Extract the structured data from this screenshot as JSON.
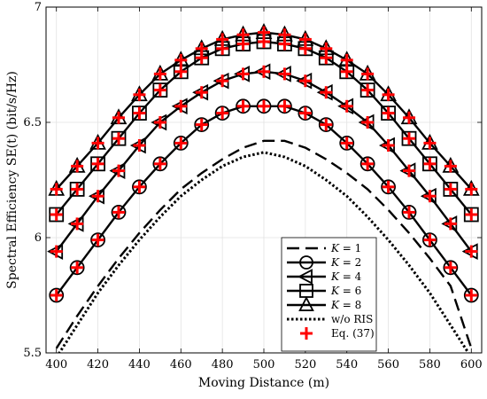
{
  "chart_data": {
    "type": "line",
    "title": "",
    "xlabel": "Moving Distance (m)",
    "ylabel": "Spectral Efficiency SE(t) (bit/s/Hz)",
    "xlim": [
      395,
      605
    ],
    "ylim": [
      5.5,
      7.0
    ],
    "x_ticks": [
      400,
      420,
      440,
      460,
      480,
      500,
      520,
      540,
      560,
      580,
      600
    ],
    "y_ticks": [
      5.5,
      6,
      6.5,
      7
    ],
    "x_tick_labels": [
      "400",
      "420",
      "440",
      "460",
      "480",
      "500",
      "520",
      "540",
      "560",
      "580",
      "600"
    ],
    "y_tick_labels": [
      "5.5",
      "6",
      "6.5",
      "7"
    ],
    "grid": true,
    "legend_position": "bottom-right",
    "x": [
      400,
      410,
      420,
      430,
      440,
      450,
      460,
      470,
      480,
      490,
      500,
      510,
      520,
      530,
      540,
      550,
      560,
      570,
      580,
      590,
      600
    ],
    "series": [
      {
        "name": "K = 1",
        "name_parts": [
          "K",
          "= 1"
        ],
        "style": "dashed",
        "marker": "none",
        "color": "#000000",
        "values": [
          5.52,
          5.66,
          5.79,
          5.91,
          6.02,
          6.12,
          6.21,
          6.28,
          6.34,
          6.39,
          6.42,
          6.42,
          6.39,
          6.34,
          6.28,
          6.21,
          6.12,
          6.02,
          5.91,
          5.79,
          5.52
        ]
      },
      {
        "name": "K = 2",
        "name_parts": [
          "K",
          "= 2"
        ],
        "style": "solid",
        "marker": "circle",
        "color": "#000000",
        "values": [
          5.75,
          5.87,
          5.99,
          6.11,
          6.22,
          6.32,
          6.41,
          6.49,
          6.54,
          6.57,
          6.57,
          6.57,
          6.54,
          6.49,
          6.41,
          6.32,
          6.22,
          6.11,
          5.99,
          5.87,
          5.75
        ]
      },
      {
        "name": "K = 4",
        "name_parts": [
          "K",
          "= 4"
        ],
        "style": "solid",
        "marker": "triangle-left",
        "color": "#000000",
        "values": [
          5.94,
          6.06,
          6.18,
          6.29,
          6.4,
          6.5,
          6.57,
          6.63,
          6.68,
          6.71,
          6.72,
          6.71,
          6.68,
          6.63,
          6.57,
          6.5,
          6.4,
          6.29,
          6.18,
          6.06,
          5.94
        ]
      },
      {
        "name": "K = 6",
        "name_parts": [
          "K",
          "= 6"
        ],
        "style": "solid",
        "marker": "square",
        "color": "#000000",
        "values": [
          6.1,
          6.21,
          6.32,
          6.43,
          6.54,
          6.64,
          6.72,
          6.78,
          6.82,
          6.84,
          6.85,
          6.84,
          6.82,
          6.78,
          6.72,
          6.64,
          6.54,
          6.43,
          6.32,
          6.21,
          6.1
        ]
      },
      {
        "name": "K = 8",
        "name_parts": [
          "K",
          "= 8"
        ],
        "style": "solid",
        "marker": "triangle-up",
        "color": "#000000",
        "values": [
          6.21,
          6.31,
          6.41,
          6.52,
          6.62,
          6.71,
          6.77,
          6.82,
          6.86,
          6.88,
          6.89,
          6.88,
          6.86,
          6.82,
          6.77,
          6.71,
          6.62,
          6.52,
          6.41,
          6.31,
          6.21
        ]
      },
      {
        "name": "w/o RIS",
        "style": "dotted",
        "marker": "none",
        "color": "#000000",
        "values": [
          5.48,
          5.62,
          5.76,
          5.88,
          5.99,
          6.09,
          6.18,
          6.25,
          6.31,
          6.35,
          6.37,
          6.35,
          6.31,
          6.25,
          6.18,
          6.09,
          5.99,
          5.88,
          5.76,
          5.62,
          5.48
        ]
      },
      {
        "name": "Eq. (37)",
        "style": "none",
        "marker": "plus",
        "color": "#ff0000",
        "applies_to": [
          "K = 2",
          "K = 4",
          "K = 6",
          "K = 8"
        ]
      }
    ]
  }
}
